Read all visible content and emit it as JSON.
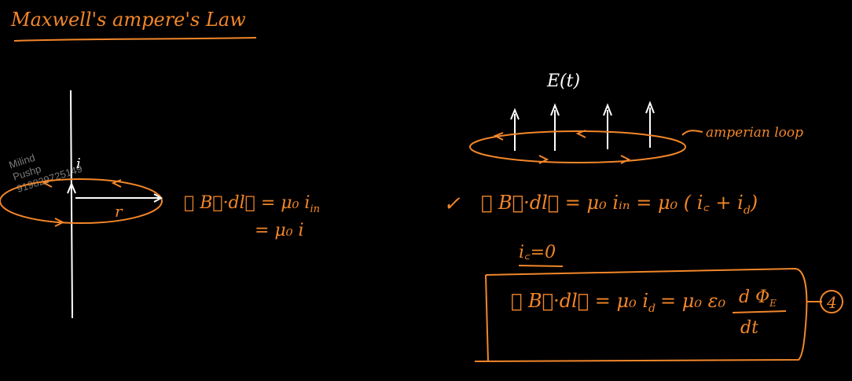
{
  "title": "Maxwell's ampere's Law",
  "watermark": {
    "line1": "Milind",
    "line2": "Pushp",
    "line3": "919829725149"
  },
  "left": {
    "current_label": "i",
    "radius_label": "r",
    "equation_line1": "∮ B⃗·dl⃗ = μ₀ i",
    "equation_line1_sub": "in",
    "equation_line2": "= μ₀ i"
  },
  "right": {
    "field_label": "E(t)",
    "loop_label": "amperian loop",
    "check_mark": "✓",
    "equation_main": "∮ B⃗·dl⃗ = μ₀ iᵢₙ = μ₀ ( i꜀ + i",
    "equation_main_sub": "d",
    "equation_main_close": ")",
    "condition": "i꜀=0",
    "boxed_left": "∮ B⃗·dl⃗ = μ₀ i",
    "boxed_left_sub": "d",
    "boxed_mid": "= μ₀ ε₀",
    "boxed_num": "d Φ",
    "boxed_num_sub": "E",
    "boxed_den": "dt",
    "eq_number": "4"
  },
  "colors": {
    "ink": "#f2862a",
    "chalk": "#ffffff",
    "watermark": "#7a7a7a",
    "background": "#000000"
  }
}
